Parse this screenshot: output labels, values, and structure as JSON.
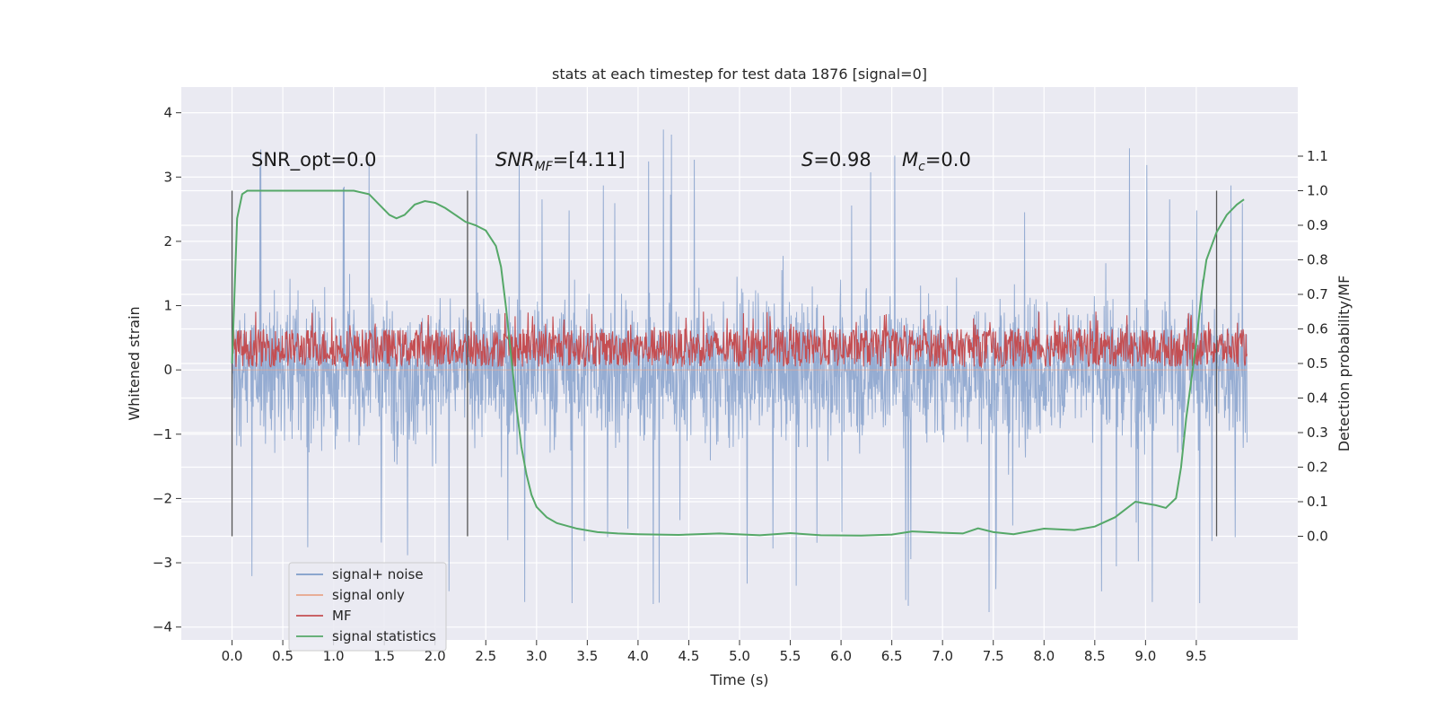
{
  "chart_data": {
    "type": "line",
    "title": "stats at each timestep for test data 1876 [signal=0]",
    "xlabel": "Time (s)",
    "ylabel": "Whitened strain",
    "y2label": "Detection probability/MF",
    "xlim": [
      -0.5,
      10.5
    ],
    "ylim": [
      -4.2,
      4.4
    ],
    "y2lim": [
      -0.3,
      1.3
    ],
    "xticks": [
      "0.0",
      "0.5",
      "1.0",
      "1.5",
      "2.0",
      "2.5",
      "3.0",
      "3.5",
      "4.0",
      "4.5",
      "5.0",
      "5.5",
      "6.0",
      "6.5",
      "7.0",
      "7.5",
      "8.0",
      "8.5",
      "9.0",
      "9.5"
    ],
    "yticks": [
      "−4",
      "−3",
      "−2",
      "−1",
      "0",
      "1",
      "2",
      "3",
      "4"
    ],
    "y2ticks": [
      "0.0",
      "0.1",
      "0.2",
      "0.3",
      "0.4",
      "0.5",
      "0.6",
      "0.7",
      "0.8",
      "0.9",
      "1.0",
      "1.1"
    ],
    "grid": true,
    "legend_position": "bottom-left",
    "annotations": {
      "snr_opt": "SNR_opt=0.0",
      "snr_mf": "SNR",
      "snr_mf_sub": "MF",
      "snr_mf_rest": "=[4.11]",
      "s_stat": "S",
      "s_stat_rest": "=0.98",
      "mc": "M",
      "mc_sub": "c",
      "mc_rest": "=0.0"
    },
    "vertical_markers_x": [
      0.0,
      2.32,
      9.7
    ],
    "series": [
      {
        "name": "signal+ noise",
        "color": "#7f9cc9",
        "axis": "left",
        "noise_envelope": {
          "x_start": 0.0,
          "x_end": 10.0,
          "typical_range": [
            -1.8,
            2.2
          ],
          "extreme_range": [
            -3.8,
            4.05
          ]
        }
      },
      {
        "name": "signal only",
        "color": "#e8a58a",
        "axis": "left",
        "x": [
          0.0,
          10.0
        ],
        "y": [
          0.0,
          0.0
        ]
      },
      {
        "name": "MF",
        "color": "#c44e52",
        "axis": "right",
        "band": {
          "x_start": 0.0,
          "x_end": 10.0,
          "low": 0.49,
          "high": 0.6,
          "peak": 0.65
        }
      },
      {
        "name": "signal statistics",
        "color": "#55a868",
        "axis": "right",
        "x": [
          0.0,
          0.05,
          0.1,
          0.15,
          0.2,
          0.4,
          0.8,
          1.2,
          1.35,
          1.45,
          1.55,
          1.62,
          1.7,
          1.8,
          1.9,
          2.0,
          2.1,
          2.2,
          2.3,
          2.4,
          2.5,
          2.6,
          2.65,
          2.7,
          2.75,
          2.8,
          2.85,
          2.9,
          2.95,
          3.0,
          3.1,
          3.2,
          3.4,
          3.6,
          3.8,
          4.0,
          4.4,
          4.8,
          5.2,
          5.5,
          5.8,
          6.2,
          6.5,
          6.7,
          7.0,
          7.2,
          7.35,
          7.5,
          7.7,
          8.0,
          8.3,
          8.5,
          8.7,
          8.9,
          9.1,
          9.2,
          9.3,
          9.35,
          9.4,
          9.45,
          9.5,
          9.55,
          9.6,
          9.7,
          9.8,
          9.9,
          9.97
        ],
        "y": [
          0.5,
          0.92,
          0.99,
          1.0,
          1.0,
          1.0,
          1.0,
          1.0,
          0.99,
          0.96,
          0.93,
          0.92,
          0.93,
          0.96,
          0.97,
          0.965,
          0.95,
          0.93,
          0.91,
          0.9,
          0.885,
          0.84,
          0.78,
          0.66,
          0.52,
          0.38,
          0.26,
          0.18,
          0.12,
          0.085,
          0.055,
          0.038,
          0.022,
          0.012,
          0.008,
          0.006,
          0.004,
          0.008,
          0.003,
          0.009,
          0.003,
          0.002,
          0.005,
          0.014,
          0.01,
          0.008,
          0.023,
          0.012,
          0.006,
          0.022,
          0.018,
          0.028,
          0.055,
          0.1,
          0.09,
          0.082,
          0.11,
          0.2,
          0.34,
          0.45,
          0.56,
          0.7,
          0.8,
          0.88,
          0.93,
          0.96,
          0.975
        ]
      }
    ]
  }
}
